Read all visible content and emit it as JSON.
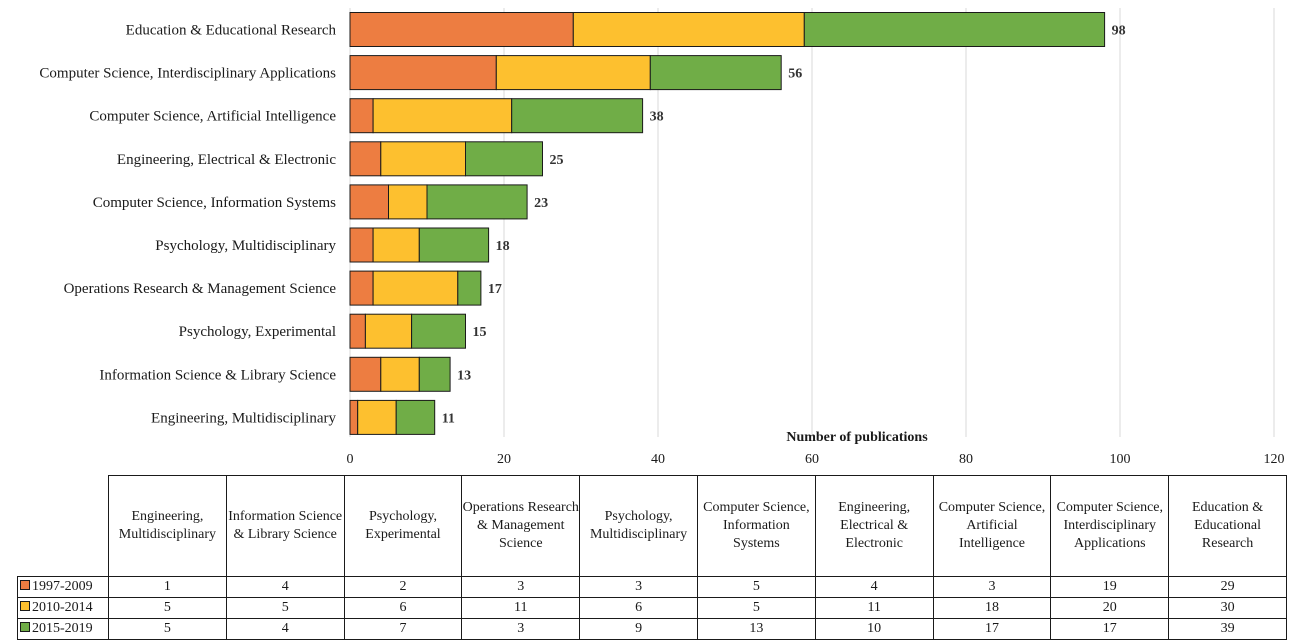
{
  "chart_data": {
    "type": "bar",
    "orientation": "horizontal",
    "stacked": true,
    "categories": [
      "Education & Educational Research",
      "Computer Science, Interdisciplinary Applications",
      "Computer Science, Artificial Intelligence",
      "Engineering, Electrical & Electronic",
      "Computer Science, Information Systems",
      "Psychology, Multidisciplinary",
      "Operations Research & Management Science",
      "Psychology, Experimental",
      "Information Science & Library Science",
      "Engineering, Multidisciplinary"
    ],
    "series": [
      {
        "name": "1997-2009",
        "color": "#ed7d41",
        "values": [
          29,
          19,
          3,
          4,
          5,
          3,
          3,
          2,
          4,
          1
        ]
      },
      {
        "name": "2010-2014",
        "color": "#fdc02f",
        "values": [
          30,
          20,
          18,
          11,
          5,
          6,
          11,
          6,
          5,
          5
        ]
      },
      {
        "name": "2015-2019",
        "color": "#70ad47",
        "values": [
          39,
          17,
          17,
          10,
          13,
          9,
          3,
          7,
          4,
          5
        ]
      }
    ],
    "totals": [
      98,
      56,
      38,
      25,
      23,
      18,
      17,
      15,
      13,
      11
    ],
    "xlabel": "Number of publications",
    "xlim": [
      0,
      120
    ],
    "xticks": [
      0,
      20,
      40,
      60,
      80,
      100,
      120
    ],
    "grid": true,
    "legend": "data table below chart",
    "table": {
      "columns": [
        "Engineering, Multidisciplinary",
        "Information Science & Library Science",
        "Psychology, Experimental",
        "Operations Research & Management Science",
        "Psychology, Multidisciplinary",
        "Computer Science, Information Systems",
        "Engineering, Electrical & Electronic",
        "Computer Science, Artificial Intelligence",
        "Computer Science, Interdisciplinary Applications",
        "Education & Educational Research"
      ],
      "rows": [
        {
          "series": "1997-2009",
          "color": "#ed7d41",
          "values": [
            "1",
            "4",
            "2",
            "3",
            "3",
            "5",
            "4",
            "3",
            "19",
            "29"
          ]
        },
        {
          "series": "2010-2014",
          "color": "#fdc02f",
          "values": [
            "5",
            "5",
            "6",
            "11",
            "6",
            "5",
            "11",
            "18",
            "20",
            "30"
          ]
        },
        {
          "series": "2015-2019",
          "color": "#70ad47",
          "values": [
            "5",
            "4",
            "7",
            "3",
            "9",
            "13",
            "10",
            "17",
            "17",
            "39"
          ]
        }
      ]
    }
  }
}
